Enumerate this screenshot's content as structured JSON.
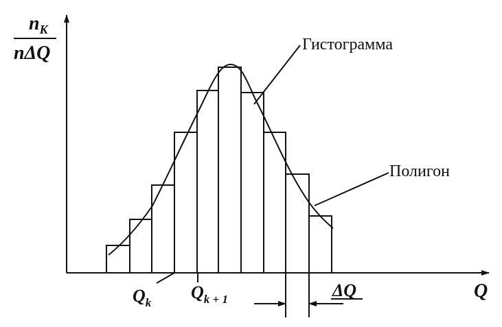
{
  "y_label": {
    "numerator": {
      "base": "n",
      "sub": "K"
    },
    "denominator": "nΔQ"
  },
  "x_label": "Q",
  "labels": {
    "histogram": "Гистограмма",
    "polygon": "Полигон"
  },
  "ticks": [
    {
      "base": "Q",
      "sub": "k"
    },
    {
      "base": "Q",
      "sub": "k + 1"
    }
  ],
  "interval": "ΔQ"
}
